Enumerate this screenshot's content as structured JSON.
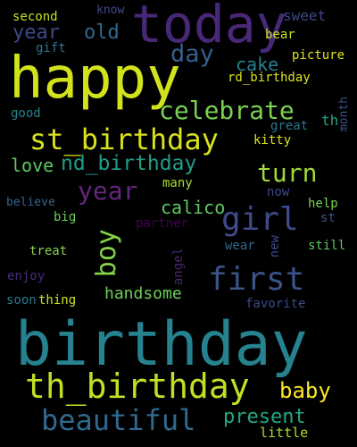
{
  "words": [
    {
      "text": "today",
      "color": "#482878"
    },
    {
      "text": "happy",
      "color": "#d2e21b"
    },
    {
      "text": "st_birthday",
      "color": "#d8e219"
    },
    {
      "text": "birthday",
      "color": "#26828e"
    },
    {
      "text": "th_birthday",
      "color": "#c2df23"
    },
    {
      "text": "girl",
      "color": "#3e4a89"
    },
    {
      "text": "first",
      "color": "#3b528b"
    },
    {
      "text": "beautiful",
      "color": "#31688e"
    },
    {
      "text": "celebrate",
      "color": "#7ad151"
    },
    {
      "text": "year",
      "color": "#3e4989"
    },
    {
      "text": "year",
      "color": "#63267a"
    },
    {
      "text": "old",
      "color": "#31688e"
    },
    {
      "text": "day",
      "color": "#355f8d"
    },
    {
      "text": "cake",
      "color": "#26828e"
    },
    {
      "text": "nd_birthday",
      "color": "#1f9e89"
    },
    {
      "text": "love",
      "color": "#5ec962"
    },
    {
      "text": "turn",
      "color": "#9fda3a"
    },
    {
      "text": "boy",
      "color": "#84d44b"
    },
    {
      "text": "calico",
      "color": "#5ec962"
    },
    {
      "text": "handsome",
      "color": "#6ece58"
    },
    {
      "text": "baby",
      "color": "#fde725"
    },
    {
      "text": "present",
      "color": "#22a884"
    },
    {
      "text": "little",
      "color": "#addc30"
    },
    {
      "text": "sweet",
      "color": "#404688"
    },
    {
      "text": "second",
      "color": "#c5e021"
    },
    {
      "text": "know",
      "color": "#3e4a89"
    },
    {
      "text": "gift",
      "color": "#2a788e"
    },
    {
      "text": "bear",
      "color": "#c8e020"
    },
    {
      "text": "picture",
      "color": "#dde318"
    },
    {
      "text": "rd_birthday",
      "color": "#dde318"
    },
    {
      "text": "good",
      "color": "#25848e"
    },
    {
      "text": "great",
      "color": "#2a788e"
    },
    {
      "text": "th",
      "color": "#20a486"
    },
    {
      "text": "month",
      "color": "#3b518b"
    },
    {
      "text": "kitty",
      "color": "#dde318"
    },
    {
      "text": "many",
      "color": "#addc30"
    },
    {
      "text": "now",
      "color": "#3e4989"
    },
    {
      "text": "help",
      "color": "#7ad151"
    },
    {
      "text": "believe",
      "color": "#33638d"
    },
    {
      "text": "st",
      "color": "#3b528b"
    },
    {
      "text": "big",
      "color": "#6ece58"
    },
    {
      "text": "partner",
      "color": "#440154"
    },
    {
      "text": "wear",
      "color": "#31688e"
    },
    {
      "text": "new",
      "color": "#3e4989"
    },
    {
      "text": "still",
      "color": "#5ec962"
    },
    {
      "text": "angel",
      "color": "#482576"
    },
    {
      "text": "treat",
      "color": "#84d44b"
    },
    {
      "text": "enjoy",
      "color": "#472d7b"
    },
    {
      "text": "thing",
      "color": "#cae11f"
    },
    {
      "text": "soon",
      "color": "#2a788e"
    },
    {
      "text": "favorite",
      "color": "#3e4989"
    }
  ]
}
